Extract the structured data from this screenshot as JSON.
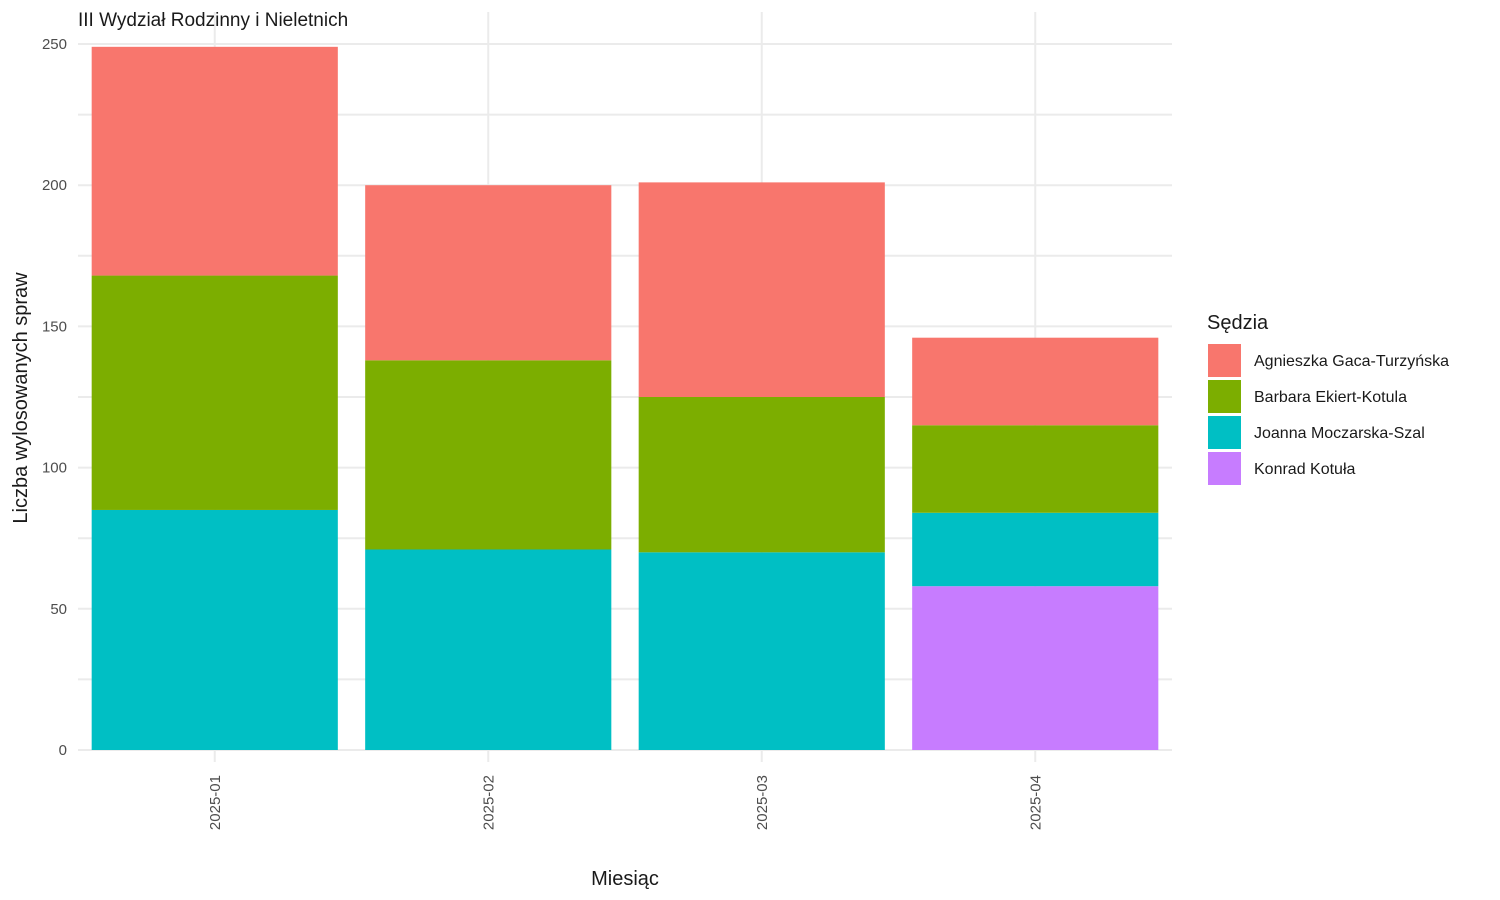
{
  "chart_data": {
    "type": "bar",
    "stacked": true,
    "title": "III Wydział Rodzinny i Nieletnich",
    "xlabel": "Miesiąc",
    "ylabel": "Liczba wylosowanych spraw",
    "ylim": [
      0,
      250
    ],
    "yticks": [
      "0",
      "50",
      "100",
      "150",
      "200",
      "250"
    ],
    "categories": [
      "2025-01",
      "2025-02",
      "2025-03",
      "2025-04"
    ],
    "grid": true,
    "legend": {
      "title": "Sędzia",
      "placement": "right"
    },
    "series": [
      {
        "name": "Agnieszka Gaca-Turzyńska",
        "color": "#F8766D",
        "values": [
          81,
          62,
          76,
          31
        ]
      },
      {
        "name": "Barbara Ekiert-Kotula",
        "color": "#7CAE00",
        "values": [
          83,
          67,
          55,
          31
        ]
      },
      {
        "name": "Joanna Moczarska-Szal",
        "color": "#00BFC4",
        "values": [
          85,
          71,
          70,
          26
        ]
      },
      {
        "name": "Konrad Kotuła",
        "color": "#C77CFF",
        "values": [
          0,
          0,
          0,
          58
        ]
      }
    ]
  }
}
